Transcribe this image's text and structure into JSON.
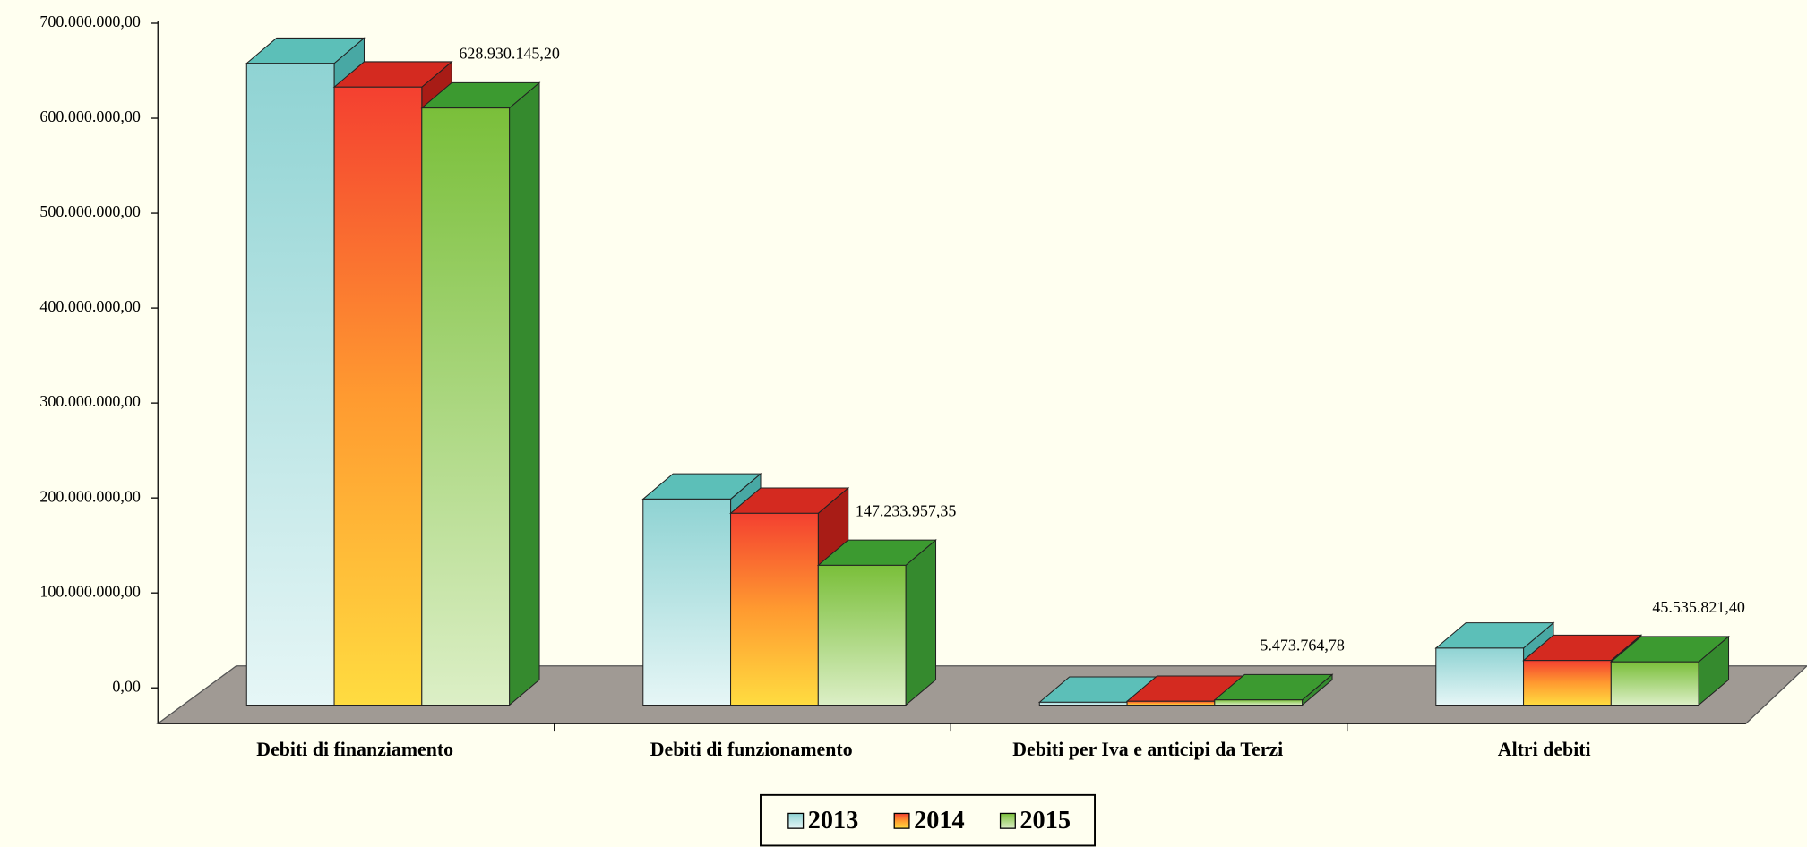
{
  "chart_data": {
    "type": "bar3d",
    "categories": [
      "Debiti di finanziamento",
      "Debiti di funzionamento",
      "Debiti per Iva e anticipi da Terzi",
      "Altri debiti"
    ],
    "series": [
      {
        "name": "2013",
        "color": "#8fd3d3",
        "values": [
          676000000,
          217000000,
          3000000,
          60000000
        ]
      },
      {
        "name": "2014",
        "color": "#f44030",
        "values": [
          651000000,
          202000000,
          4000000,
          47000000
        ]
      },
      {
        "name": "2015",
        "color": "#7abf3a",
        "values": [
          628930145.2,
          147233957.35,
          5473764.78,
          45535821.4
        ],
        "value_labels": [
          "628.930.145,20",
          "147.233.957,35",
          "5.473.764,78",
          "45.535.821,40"
        ]
      }
    ],
    "ylim": [
      0,
      700000000
    ],
    "yticks": [
      {
        "value": 0,
        "label": "0,00"
      },
      {
        "value": 100000000,
        "label": "100.000.000,00"
      },
      {
        "value": 200000000,
        "label": "200.000.000,00"
      },
      {
        "value": 300000000,
        "label": "300.000.000,00"
      },
      {
        "value": 400000000,
        "label": "400.000.000,00"
      },
      {
        "value": 500000000,
        "label": "500.000.000,00"
      },
      {
        "value": 600000000,
        "label": "600.000.000,00"
      },
      {
        "value": 700000000,
        "label": "700.000.000,00"
      }
    ],
    "legend": "bottom"
  }
}
